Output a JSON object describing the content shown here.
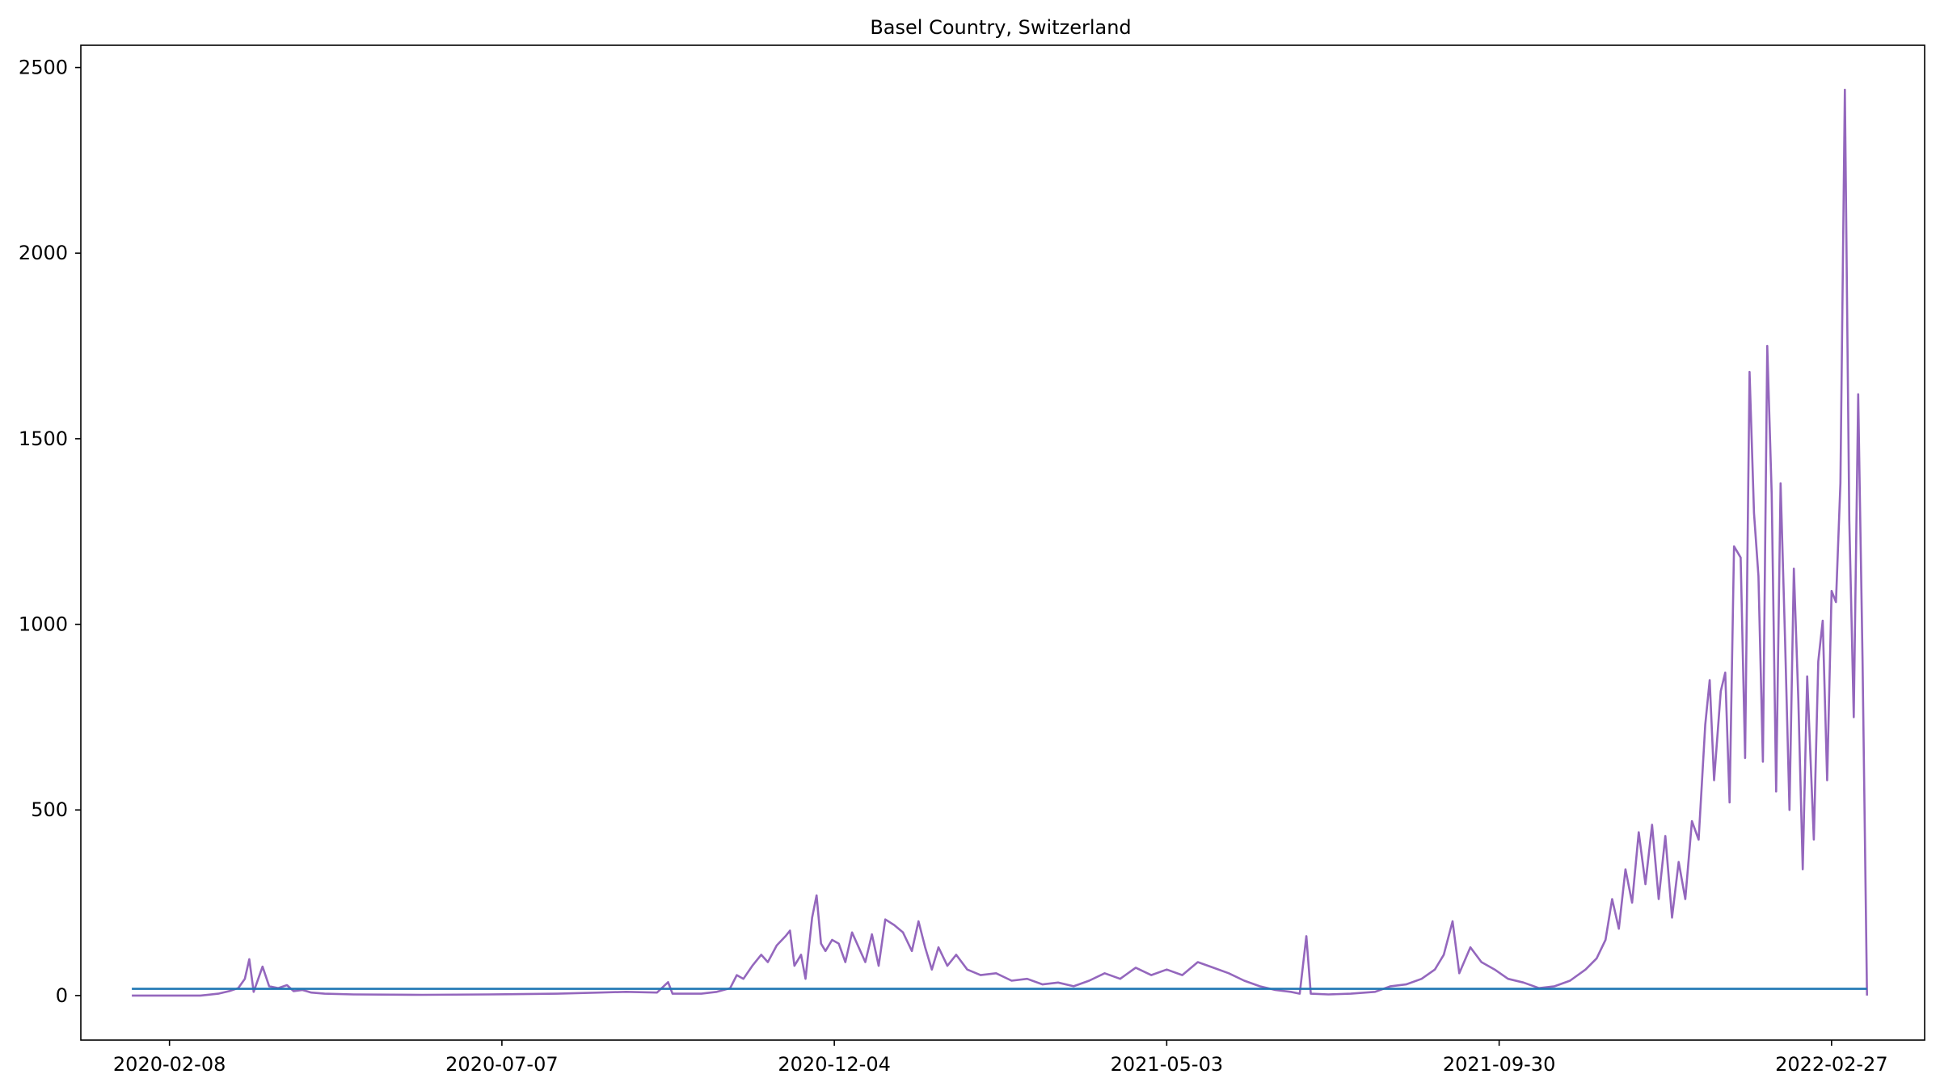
{
  "chart_data": {
    "type": "line",
    "title": "Basel Country, Switzerland",
    "xlabel": "",
    "ylabel": "",
    "x_range": [
      "2019-12-30",
      "2022-04-10"
    ],
    "ylim": [
      -120,
      2560
    ],
    "x_tick_labels": [
      "2020-02-08",
      "2020-07-07",
      "2020-12-04",
      "2021-05-03",
      "2021-09-30",
      "2022-02-27"
    ],
    "y_tick_labels": [
      "0",
      "500",
      "1000",
      "1500",
      "2000",
      "2500"
    ],
    "y_ticks": [
      0,
      500,
      1000,
      1500,
      2000,
      2500
    ],
    "grid": false,
    "legend": "none",
    "series": [
      {
        "color": "#9467bd",
        "points": [
          [
            "2020-01-22",
            0
          ],
          [
            "2020-02-22",
            0
          ],
          [
            "2020-03-01",
            5
          ],
          [
            "2020-03-06",
            12
          ],
          [
            "2020-03-10",
            20
          ],
          [
            "2020-03-13",
            45
          ],
          [
            "2020-03-15",
            98
          ],
          [
            "2020-03-17",
            10
          ],
          [
            "2020-03-21",
            78
          ],
          [
            "2020-03-24",
            25
          ],
          [
            "2020-03-28",
            20
          ],
          [
            "2020-04-01",
            28
          ],
          [
            "2020-04-04",
            12
          ],
          [
            "2020-04-08",
            15
          ],
          [
            "2020-04-12",
            8
          ],
          [
            "2020-04-18",
            5
          ],
          [
            "2020-05-01",
            3
          ],
          [
            "2020-06-01",
            2
          ],
          [
            "2020-07-01",
            3
          ],
          [
            "2020-08-01",
            5
          ],
          [
            "2020-08-20",
            8
          ],
          [
            "2020-09-01",
            10
          ],
          [
            "2020-09-15",
            8
          ],
          [
            "2020-09-20",
            36
          ],
          [
            "2020-09-22",
            5
          ],
          [
            "2020-10-05",
            5
          ],
          [
            "2020-10-12",
            10
          ],
          [
            "2020-10-18",
            20
          ],
          [
            "2020-10-21",
            55
          ],
          [
            "2020-10-24",
            45
          ],
          [
            "2020-10-28",
            80
          ],
          [
            "2020-11-01",
            110
          ],
          [
            "2020-11-04",
            90
          ],
          [
            "2020-11-08",
            135
          ],
          [
            "2020-11-12",
            160
          ],
          [
            "2020-11-14",
            175
          ],
          [
            "2020-11-16",
            80
          ],
          [
            "2020-11-19",
            110
          ],
          [
            "2020-11-21",
            45
          ],
          [
            "2020-11-24",
            210
          ],
          [
            "2020-11-26",
            270
          ],
          [
            "2020-11-28",
            140
          ],
          [
            "2020-11-30",
            120
          ],
          [
            "2020-12-03",
            150
          ],
          [
            "2020-12-06",
            140
          ],
          [
            "2020-12-09",
            90
          ],
          [
            "2020-12-12",
            170
          ],
          [
            "2020-12-15",
            130
          ],
          [
            "2020-12-18",
            90
          ],
          [
            "2020-12-21",
            165
          ],
          [
            "2020-12-24",
            80
          ],
          [
            "2020-12-27",
            205
          ],
          [
            "2020-12-31",
            190
          ],
          [
            "2021-01-04",
            170
          ],
          [
            "2021-01-08",
            120
          ],
          [
            "2021-01-11",
            200
          ],
          [
            "2021-01-14",
            130
          ],
          [
            "2021-01-17",
            70
          ],
          [
            "2021-01-20",
            130
          ],
          [
            "2021-01-24",
            80
          ],
          [
            "2021-01-28",
            110
          ],
          [
            "2021-02-02",
            70
          ],
          [
            "2021-02-08",
            55
          ],
          [
            "2021-02-15",
            60
          ],
          [
            "2021-02-22",
            40
          ],
          [
            "2021-03-01",
            45
          ],
          [
            "2021-03-08",
            30
          ],
          [
            "2021-03-15",
            35
          ],
          [
            "2021-03-22",
            25
          ],
          [
            "2021-03-29",
            40
          ],
          [
            "2021-04-05",
            60
          ],
          [
            "2021-04-12",
            45
          ],
          [
            "2021-04-19",
            75
          ],
          [
            "2021-04-26",
            55
          ],
          [
            "2021-05-03",
            70
          ],
          [
            "2021-05-10",
            55
          ],
          [
            "2021-05-17",
            90
          ],
          [
            "2021-05-24",
            75
          ],
          [
            "2021-05-31",
            60
          ],
          [
            "2021-06-07",
            40
          ],
          [
            "2021-06-14",
            25
          ],
          [
            "2021-06-21",
            15
          ],
          [
            "2021-06-28",
            10
          ],
          [
            "2021-07-02",
            5
          ],
          [
            "2021-07-05",
            160
          ],
          [
            "2021-07-07",
            5
          ],
          [
            "2021-07-15",
            3
          ],
          [
            "2021-07-25",
            5
          ],
          [
            "2021-08-05",
            10
          ],
          [
            "2021-08-12",
            25
          ],
          [
            "2021-08-19",
            30
          ],
          [
            "2021-08-26",
            45
          ],
          [
            "2021-09-01",
            70
          ],
          [
            "2021-09-05",
            110
          ],
          [
            "2021-09-09",
            200
          ],
          [
            "2021-09-12",
            60
          ],
          [
            "2021-09-17",
            130
          ],
          [
            "2021-09-22",
            90
          ],
          [
            "2021-09-28",
            70
          ],
          [
            "2021-10-04",
            45
          ],
          [
            "2021-10-11",
            35
          ],
          [
            "2021-10-18",
            20
          ],
          [
            "2021-10-25",
            25
          ],
          [
            "2021-11-01",
            40
          ],
          [
            "2021-11-08",
            70
          ],
          [
            "2021-11-13",
            100
          ],
          [
            "2021-11-17",
            150
          ],
          [
            "2021-11-20",
            260
          ],
          [
            "2021-11-23",
            180
          ],
          [
            "2021-11-26",
            340
          ],
          [
            "2021-11-29",
            250
          ],
          [
            "2021-12-02",
            440
          ],
          [
            "2021-12-05",
            300
          ],
          [
            "2021-12-08",
            460
          ],
          [
            "2021-12-11",
            260
          ],
          [
            "2021-12-14",
            430
          ],
          [
            "2021-12-17",
            210
          ],
          [
            "2021-12-20",
            360
          ],
          [
            "2021-12-23",
            260
          ],
          [
            "2021-12-26",
            470
          ],
          [
            "2021-12-29",
            420
          ],
          [
            "2022-01-01",
            730
          ],
          [
            "2022-01-03",
            850
          ],
          [
            "2022-01-05",
            580
          ],
          [
            "2022-01-08",
            820
          ],
          [
            "2022-01-10",
            870
          ],
          [
            "2022-01-12",
            520
          ],
          [
            "2022-01-14",
            1210
          ],
          [
            "2022-01-17",
            1180
          ],
          [
            "2022-01-19",
            640
          ],
          [
            "2022-01-21",
            1680
          ],
          [
            "2022-01-23",
            1300
          ],
          [
            "2022-01-25",
            1130
          ],
          [
            "2022-01-27",
            630
          ],
          [
            "2022-01-29",
            1750
          ],
          [
            "2022-01-31",
            1350
          ],
          [
            "2022-02-02",
            550
          ],
          [
            "2022-02-04",
            1380
          ],
          [
            "2022-02-06",
            960
          ],
          [
            "2022-02-08",
            500
          ],
          [
            "2022-02-10",
            1150
          ],
          [
            "2022-02-12",
            800
          ],
          [
            "2022-02-14",
            340
          ],
          [
            "2022-02-16",
            860
          ],
          [
            "2022-02-19",
            420
          ],
          [
            "2022-02-21",
            900
          ],
          [
            "2022-02-23",
            1010
          ],
          [
            "2022-02-25",
            580
          ],
          [
            "2022-02-27",
            1090
          ],
          [
            "2022-03-01",
            1060
          ],
          [
            "2022-03-03",
            1380
          ],
          [
            "2022-03-05",
            2440
          ],
          [
            "2022-03-07",
            1280
          ],
          [
            "2022-03-09",
            750
          ],
          [
            "2022-03-11",
            1620
          ],
          [
            "2022-03-13",
            900
          ],
          [
            "2022-03-15",
            0
          ]
        ]
      },
      {
        "color": "#1f77b4",
        "points": [
          [
            "2020-01-22",
            18
          ],
          [
            "2022-03-15",
            18
          ]
        ]
      }
    ]
  }
}
